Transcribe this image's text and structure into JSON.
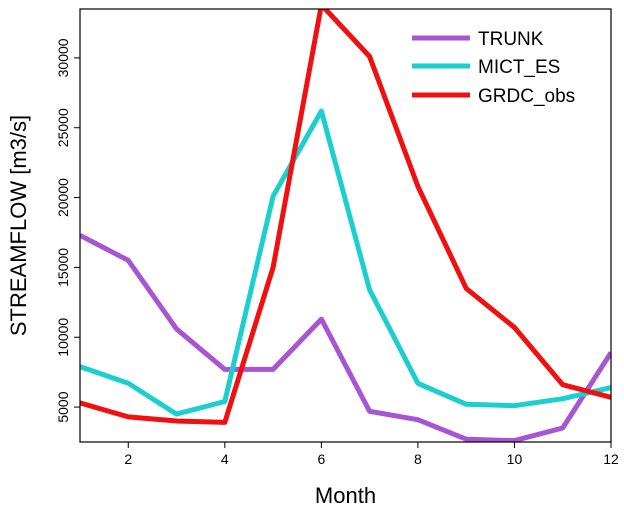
{
  "chart_data": {
    "type": "line",
    "xlabel": "Month",
    "ylabel": "STREAMFLOW [m3/s]",
    "xlim": [
      1,
      12
    ],
    "ylim": [
      2500,
      33500
    ],
    "x": [
      1,
      2,
      3,
      4,
      5,
      6,
      7,
      8,
      9,
      10,
      11,
      12
    ],
    "x_ticks": [
      2,
      4,
      6,
      8,
      10,
      12
    ],
    "y_ticks": [
      5000,
      10000,
      15000,
      20000,
      25000,
      30000
    ],
    "grid": false,
    "legend_position": "top-right",
    "series": [
      {
        "name": "TRUNK",
        "color": "#A855D4",
        "values": [
          17300,
          15500,
          10600,
          7700,
          7700,
          11300,
          4700,
          4100,
          2700,
          2600,
          3500,
          8900
        ]
      },
      {
        "name": "MICT_ES",
        "color": "#1CCFCF",
        "values": [
          7900,
          6700,
          4500,
          5400,
          20100,
          26200,
          13400,
          6700,
          5200,
          5100,
          5600,
          6400
        ]
      },
      {
        "name": "GRDC_obs",
        "color": "#F01010",
        "values": [
          5300,
          4300,
          4000,
          3900,
          15000,
          33800,
          30100,
          20800,
          13500,
          10700,
          6600,
          5700
        ]
      }
    ]
  }
}
